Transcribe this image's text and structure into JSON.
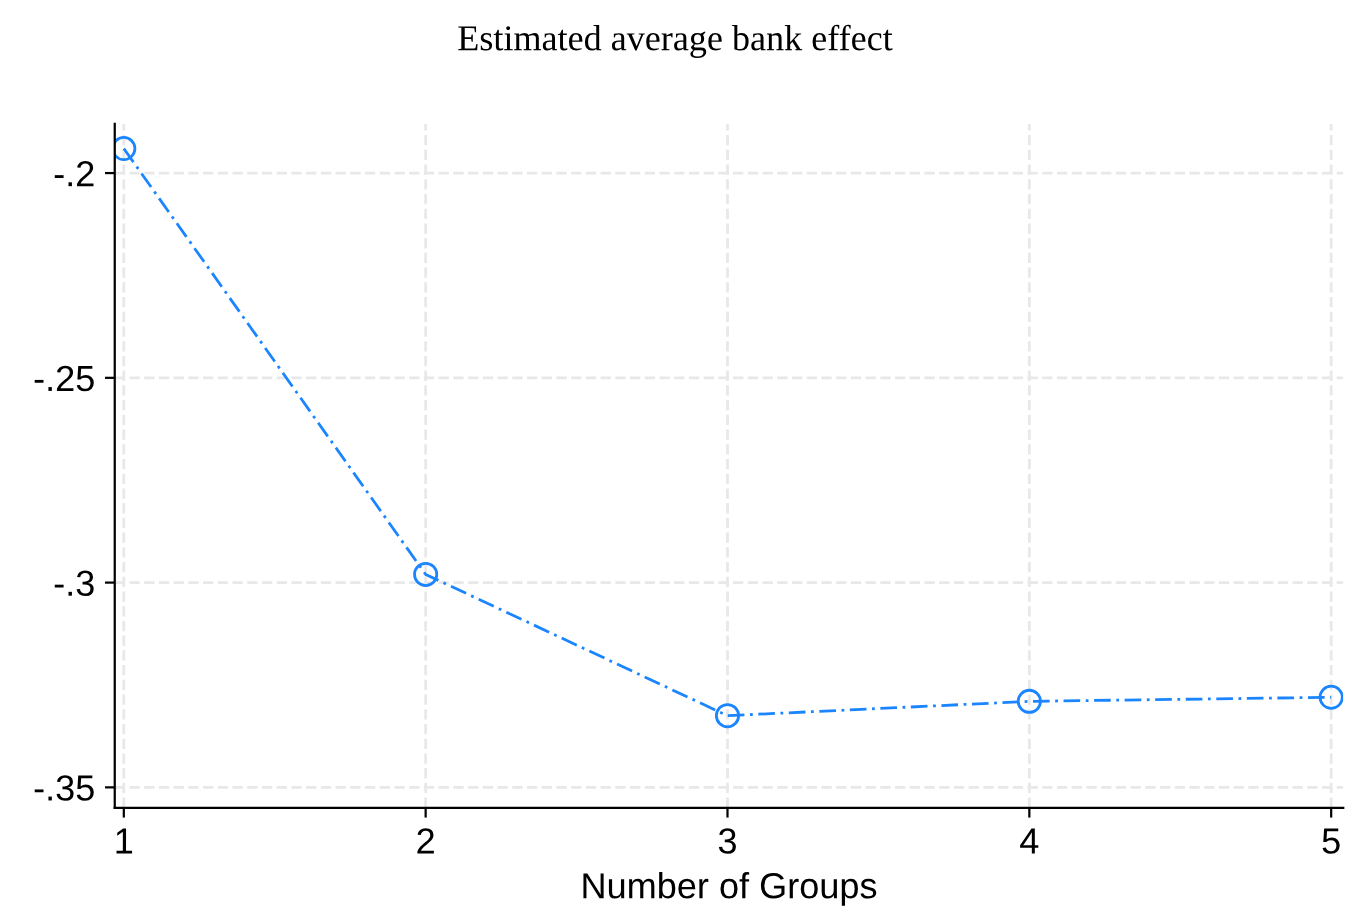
{
  "chart_data": {
    "type": "line",
    "title": "Estimated average bank effect",
    "xlabel": "Number of Groups",
    "x": [
      1,
      2,
      3,
      4,
      5
    ],
    "series": [
      {
        "color": "#1a85ff",
        "values": [
          -0.194,
          -0.298,
          -0.3325,
          -0.329,
          -0.328
        ]
      }
    ],
    "xlim": [
      0.97,
      5.04
    ],
    "xticks": [
      1,
      2,
      3,
      4,
      5
    ],
    "ylim": [
      -0.355,
      -0.188
    ],
    "yticks": [
      {
        "value": -0.2,
        "label": "-.2"
      },
      {
        "value": -0.25,
        "label": "-.25"
      },
      {
        "value": -0.3,
        "label": "-.3"
      },
      {
        "value": -0.35,
        "label": "-.35"
      }
    ],
    "grid": true,
    "marker": "circle",
    "line_style": "dashed",
    "legend": false
  }
}
